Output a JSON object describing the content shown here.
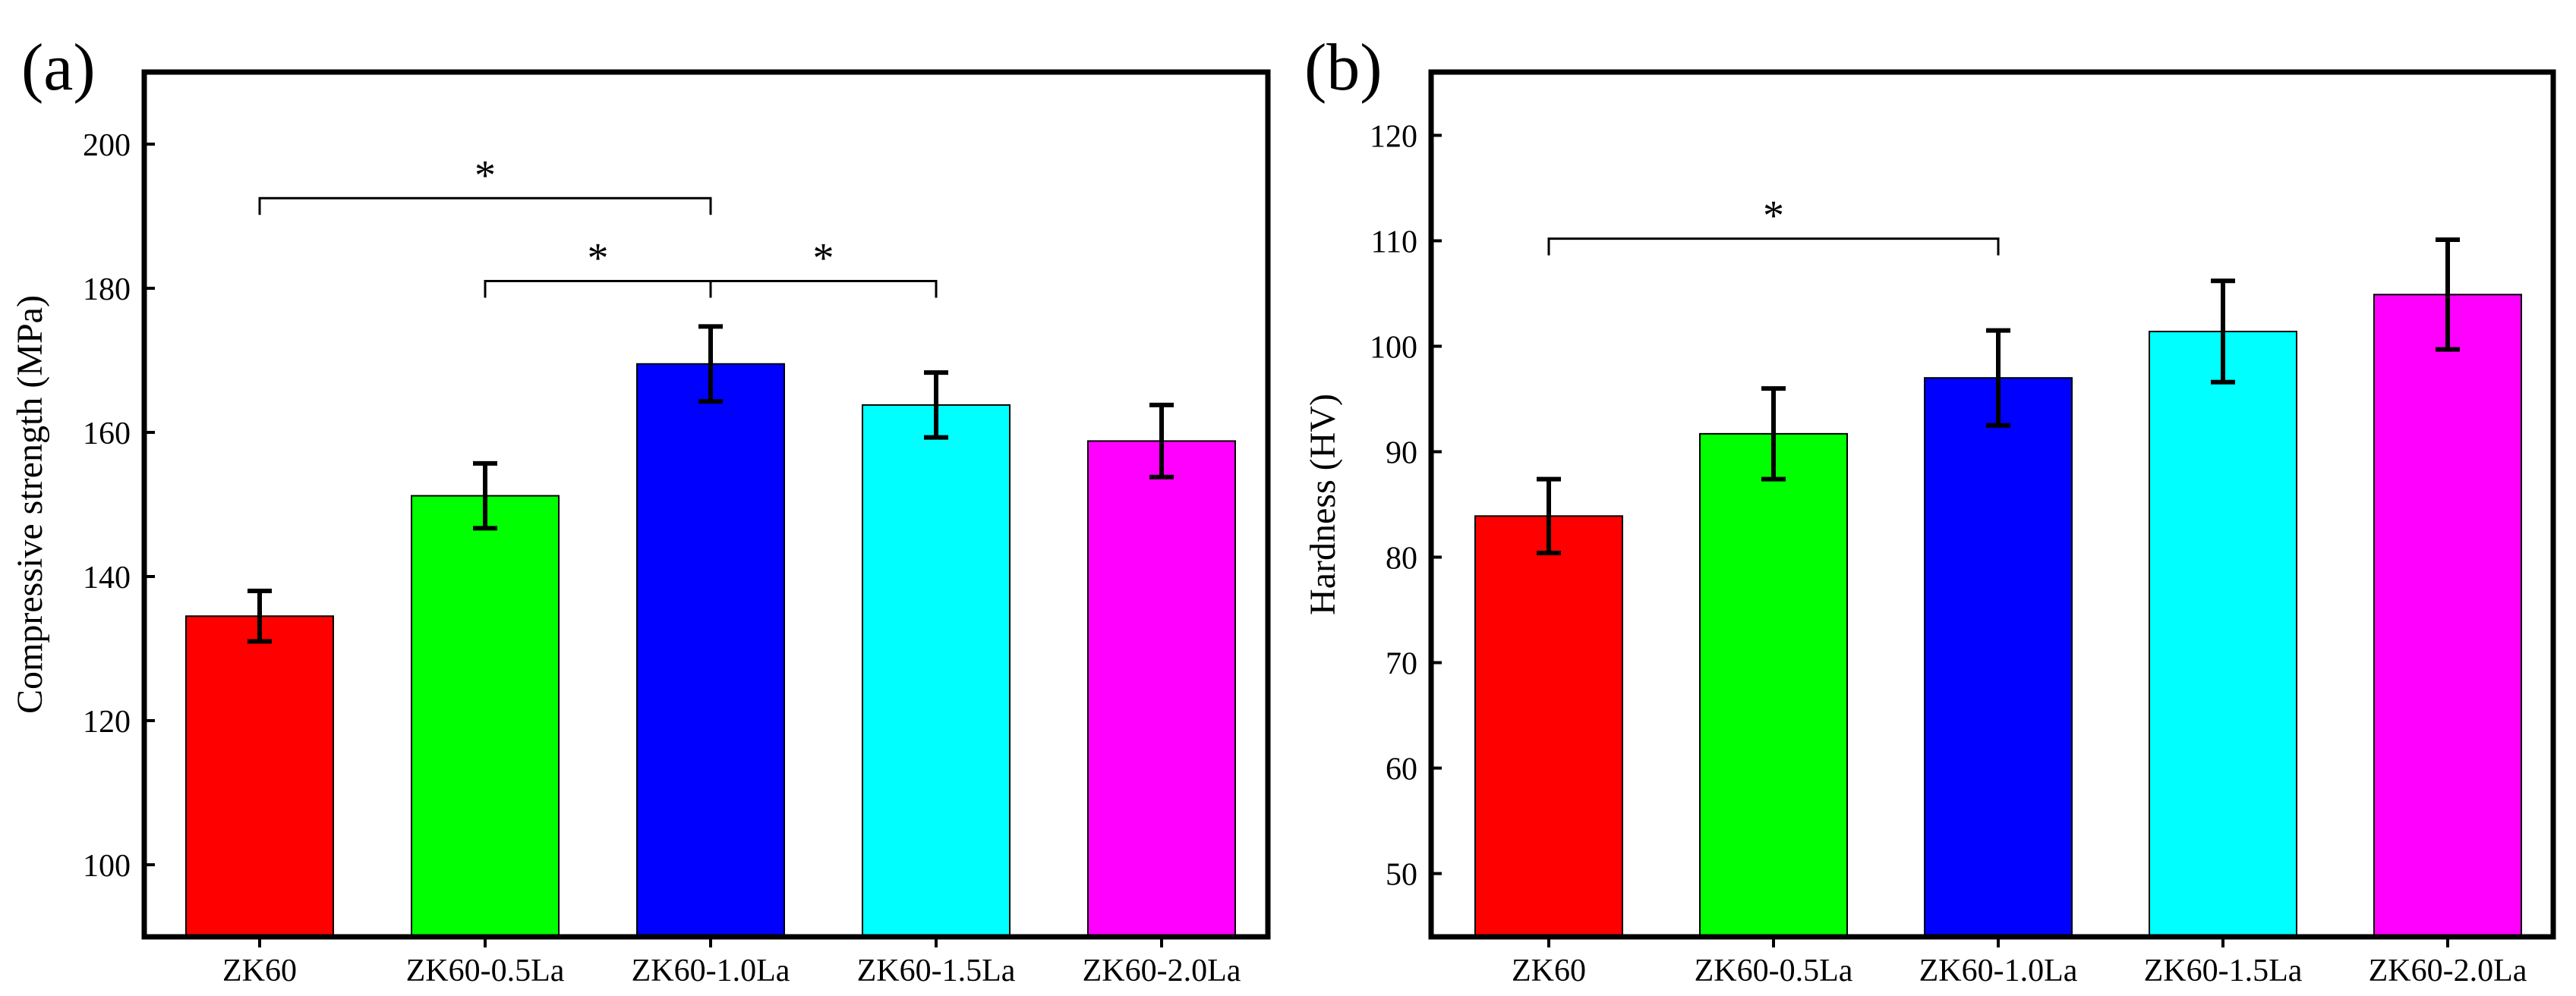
{
  "chart_data": [
    {
      "panel_label": "(a)",
      "type": "bar",
      "title": "",
      "xlabel": "",
      "ylabel": "Compressive strength (MPa)",
      "ylim": [
        90,
        210
      ],
      "yticks": [
        100,
        120,
        140,
        160,
        180,
        200
      ],
      "grid": false,
      "categories": [
        "ZK60",
        "ZK60-0.5La",
        "ZK60-1.0La",
        "ZK60-1.5La",
        "ZK60-2.0La"
      ],
      "values": [
        134.5,
        151.2,
        169.5,
        163.8,
        158.8
      ],
      "errors": [
        3.5,
        4.5,
        5.2,
        4.5,
        5.0
      ],
      "colors": [
        "#ff0000",
        "#00ff00",
        "#0000ff",
        "#00ffff",
        "#ff00ff"
      ],
      "significance": [
        {
          "from": 0,
          "to": 2,
          "level": 192.5,
          "label": "*"
        },
        {
          "from": 1,
          "to": 2,
          "level": 181.0,
          "label": "*"
        },
        {
          "from": 2,
          "to": 3,
          "level": 181.0,
          "label": "*"
        }
      ]
    },
    {
      "panel_label": "(b)",
      "type": "bar",
      "title": "",
      "xlabel": "",
      "ylabel": "Hardness (HV)",
      "ylim": [
        44,
        126
      ],
      "yticks": [
        50,
        60,
        70,
        80,
        90,
        100,
        110,
        120
      ],
      "grid": false,
      "categories": [
        "ZK60",
        "ZK60-0.5La",
        "ZK60-1.0La",
        "ZK60-1.5La",
        "ZK60-2.0La"
      ],
      "values": [
        83.9,
        91.7,
        97.0,
        101.4,
        104.9
      ],
      "errors": [
        3.5,
        4.3,
        4.5,
        4.8,
        5.2
      ],
      "colors": [
        "#ff0000",
        "#00ff00",
        "#0000ff",
        "#00ffff",
        "#ff00ff"
      ],
      "significance": [
        {
          "from": 0,
          "to": 2,
          "level": 110.2,
          "label": "*"
        }
      ]
    }
  ]
}
